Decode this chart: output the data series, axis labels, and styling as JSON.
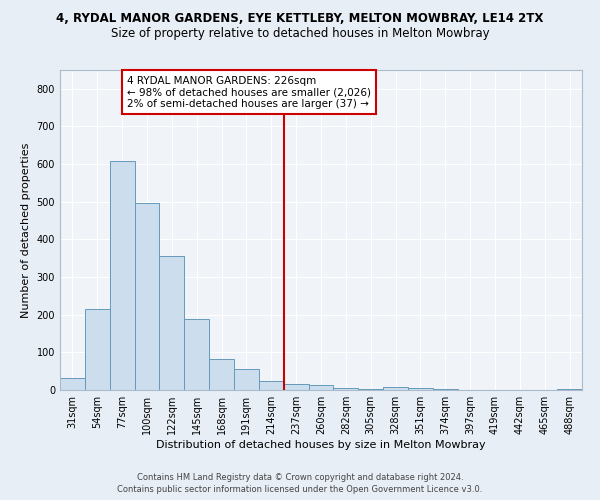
{
  "title": "4, RYDAL MANOR GARDENS, EYE KETTLEBY, MELTON MOWBRAY, LE14 2TX",
  "subtitle": "Size of property relative to detached houses in Melton Mowbray",
  "xlabel": "Distribution of detached houses by size in Melton Mowbray",
  "ylabel": "Number of detached properties",
  "bin_labels": [
    "31sqm",
    "54sqm",
    "77sqm",
    "100sqm",
    "122sqm",
    "145sqm",
    "168sqm",
    "191sqm",
    "214sqm",
    "237sqm",
    "260sqm",
    "282sqm",
    "305sqm",
    "328sqm",
    "351sqm",
    "374sqm",
    "397sqm",
    "419sqm",
    "442sqm",
    "465sqm",
    "488sqm"
  ],
  "bar_heights": [
    32,
    215,
    608,
    496,
    355,
    188,
    83,
    55,
    25,
    17,
    12,
    4,
    2,
    8,
    6,
    2,
    1,
    1,
    1,
    1,
    2
  ],
  "bar_color": "#ccdded",
  "bar_edge_color": "#6699bb",
  "vline_color": "#cc0000",
  "annotation_text": "4 RYDAL MANOR GARDENS: 226sqm\n← 98% of detached houses are smaller (2,026)\n2% of semi-detached houses are larger (37) →",
  "annotation_box_color": "#cc0000",
  "annotation_bg": "#ffffff",
  "ylim": [
    0,
    850
  ],
  "yticks": [
    0,
    100,
    200,
    300,
    400,
    500,
    600,
    700,
    800
  ],
  "footer_line1": "Contains HM Land Registry data © Crown copyright and database right 2024.",
  "footer_line2": "Contains public sector information licensed under the Open Government Licence v3.0.",
  "bg_color": "#e8eef5",
  "plot_bg_color": "#f0f4f8",
  "title_fontsize": 8.5,
  "subtitle_fontsize": 8.5,
  "ylabel_fontsize": 8,
  "xlabel_fontsize": 8,
  "tick_fontsize": 7,
  "annotation_fontsize": 7.5,
  "footer_fontsize": 6
}
